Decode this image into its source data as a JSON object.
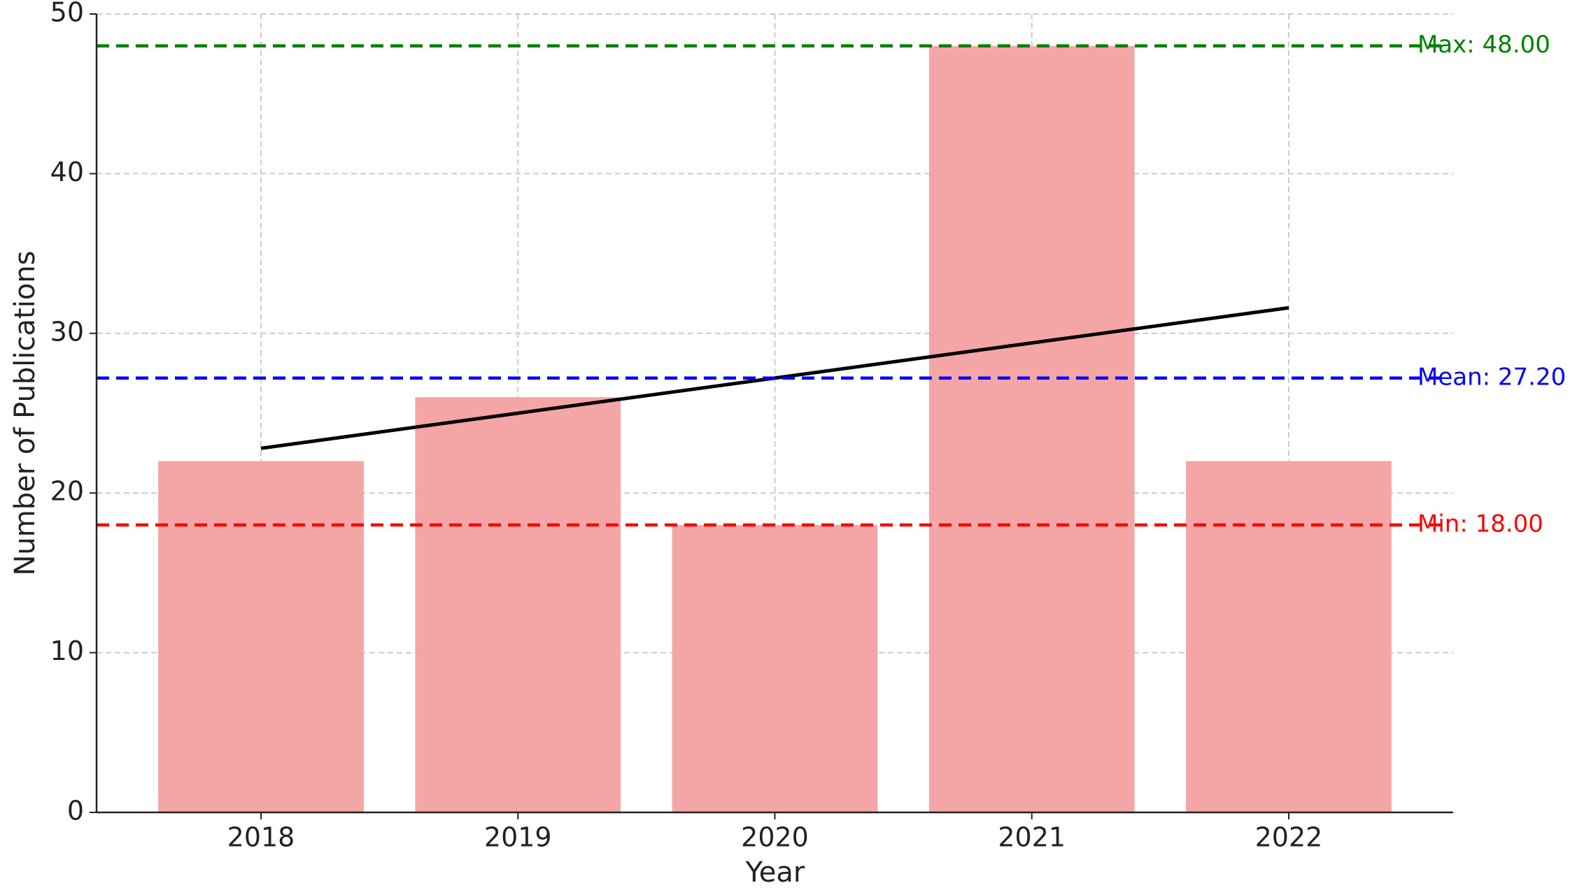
{
  "chart_data": {
    "type": "bar",
    "categories": [
      "2018",
      "2019",
      "2020",
      "2021",
      "2022"
    ],
    "values": [
      22,
      26,
      18,
      48,
      22
    ],
    "color": "#f4a6a6",
    "xlabel": "Year",
    "ylabel": "Number of Publications",
    "ylim": [
      0,
      50
    ],
    "yticks": [
      0,
      10,
      20,
      30,
      40,
      50
    ],
    "grid": true,
    "trend": {
      "color": "#000000",
      "values": [
        22.8,
        25,
        27.2,
        29.4,
        31.6
      ]
    },
    "reference_lines": [
      {
        "label": "Max: 48.00",
        "value": 48,
        "color": "green"
      },
      {
        "label": "Mean: 27.20",
        "value": 27.2,
        "color": "blue"
      },
      {
        "label": "Min: 18.00",
        "value": 18,
        "color": "red"
      }
    ]
  }
}
